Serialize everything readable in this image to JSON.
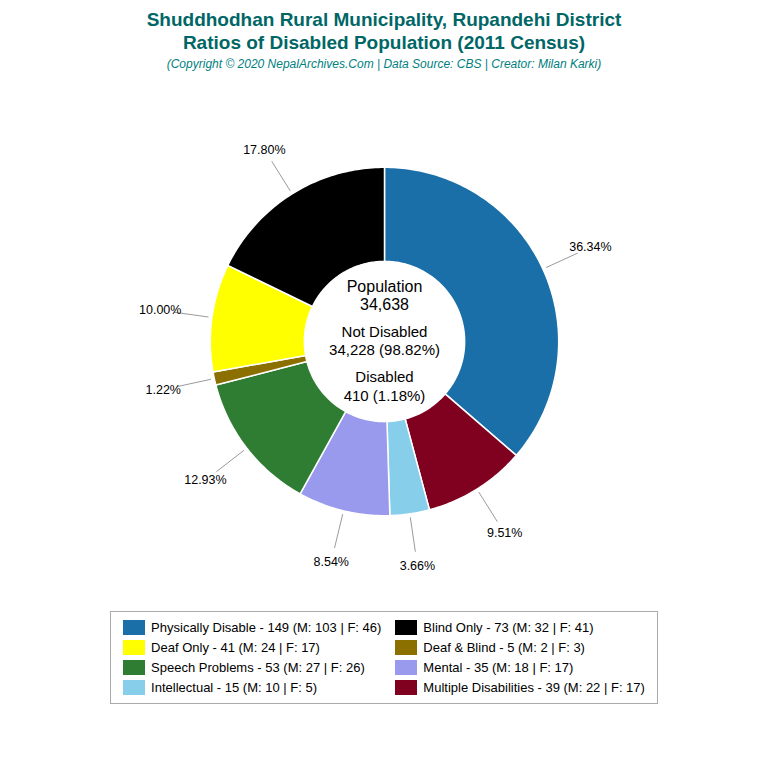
{
  "chart_data": {
    "type": "pie",
    "title": "Shuddhodhan Rural Municipality, Rupandehi District\nRatios of Disabled Population (2011 Census)",
    "subtitle": "(Copyright © 2020 NepalArchives.Com | Data Source: CBS | Creator: Milan Karki)",
    "categories": [
      "Physically Disable - 149 (M: 103 | F: 46)",
      "Multiple Disabilities - 39 (M: 22 | F: 17)",
      "Intellectual - 15 (M: 10 | F: 5)",
      "Mental - 35 (M: 18 | F: 17)",
      "Speech Problems - 53 (M: 27 | F: 26)",
      "Deaf & Blind - 5 (M: 2 | F: 3)",
      "Deaf Only - 41 (M: 24 | F: 17)",
      "Blind Only - 73 (M: 32 | F: 41)"
    ],
    "values": [
      36.34,
      9.51,
      3.66,
      8.54,
      12.93,
      1.22,
      10.0,
      17.8
    ],
    "value_labels": [
      "36.34%",
      "9.51%",
      "3.66%",
      "8.54%",
      "12.93%",
      "1.22%",
      "10.00%",
      "17.80%"
    ],
    "colors": [
      "#1a6fa8",
      "#800020",
      "#87ceeb",
      "#9999ee",
      "#2e7d32",
      "#8B7000",
      "#ffff00",
      "#000000"
    ],
    "annotations": [
      "Population",
      "34,638",
      "Not Disabled",
      "34,228 (98.82%)",
      "Disabled",
      "410 (1.18%)"
    ],
    "data_labels": true,
    "legend": "bottom"
  }
}
